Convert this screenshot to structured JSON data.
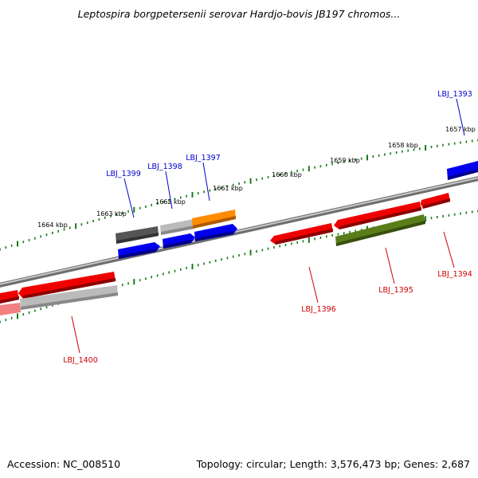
{
  "title": "Leptospira borgpetersenii serovar Hardjo-bovis JB197 chromos...",
  "footer": {
    "accession": "Accession: NC_008510",
    "info": "Topology: circular; Length: 3,576,473 bp; Genes: 2,687"
  },
  "ticks": {
    "unit": "kbp",
    "labels": [
      "1657 kbp",
      "1658 kbp",
      "1659 kbp",
      "1660 kbp",
      "1661 kbp",
      "1662 kbp",
      "1663 kbp",
      "1664 kbp"
    ]
  },
  "genes": {
    "top": [
      {
        "label": "LBJ_1393",
        "color": "#0000cc"
      },
      {
        "label": "LBJ_1397",
        "color": "#0000cc"
      },
      {
        "label": "LBJ_1398",
        "color": "#0000cc"
      },
      {
        "label": "LBJ_1399",
        "color": "#0000cc"
      }
    ],
    "bottom": [
      {
        "label": "LBJ_1394",
        "color": "#cc0000"
      },
      {
        "label": "LBJ_1395",
        "color": "#cc0000"
      },
      {
        "label": "LBJ_1396",
        "color": "#cc0000"
      },
      {
        "label": "LBJ_1400",
        "color": "#cc0000"
      }
    ]
  },
  "colors": {
    "backbone": "#777777",
    "tick": "#1a7a1a",
    "forward_strand": "#0000ee",
    "reverse_strand": "#ee0000",
    "gray": "#bbbbbb",
    "dark_gray": "#555555",
    "orange": "#ff8c00",
    "olive": "#5a7d1a"
  }
}
